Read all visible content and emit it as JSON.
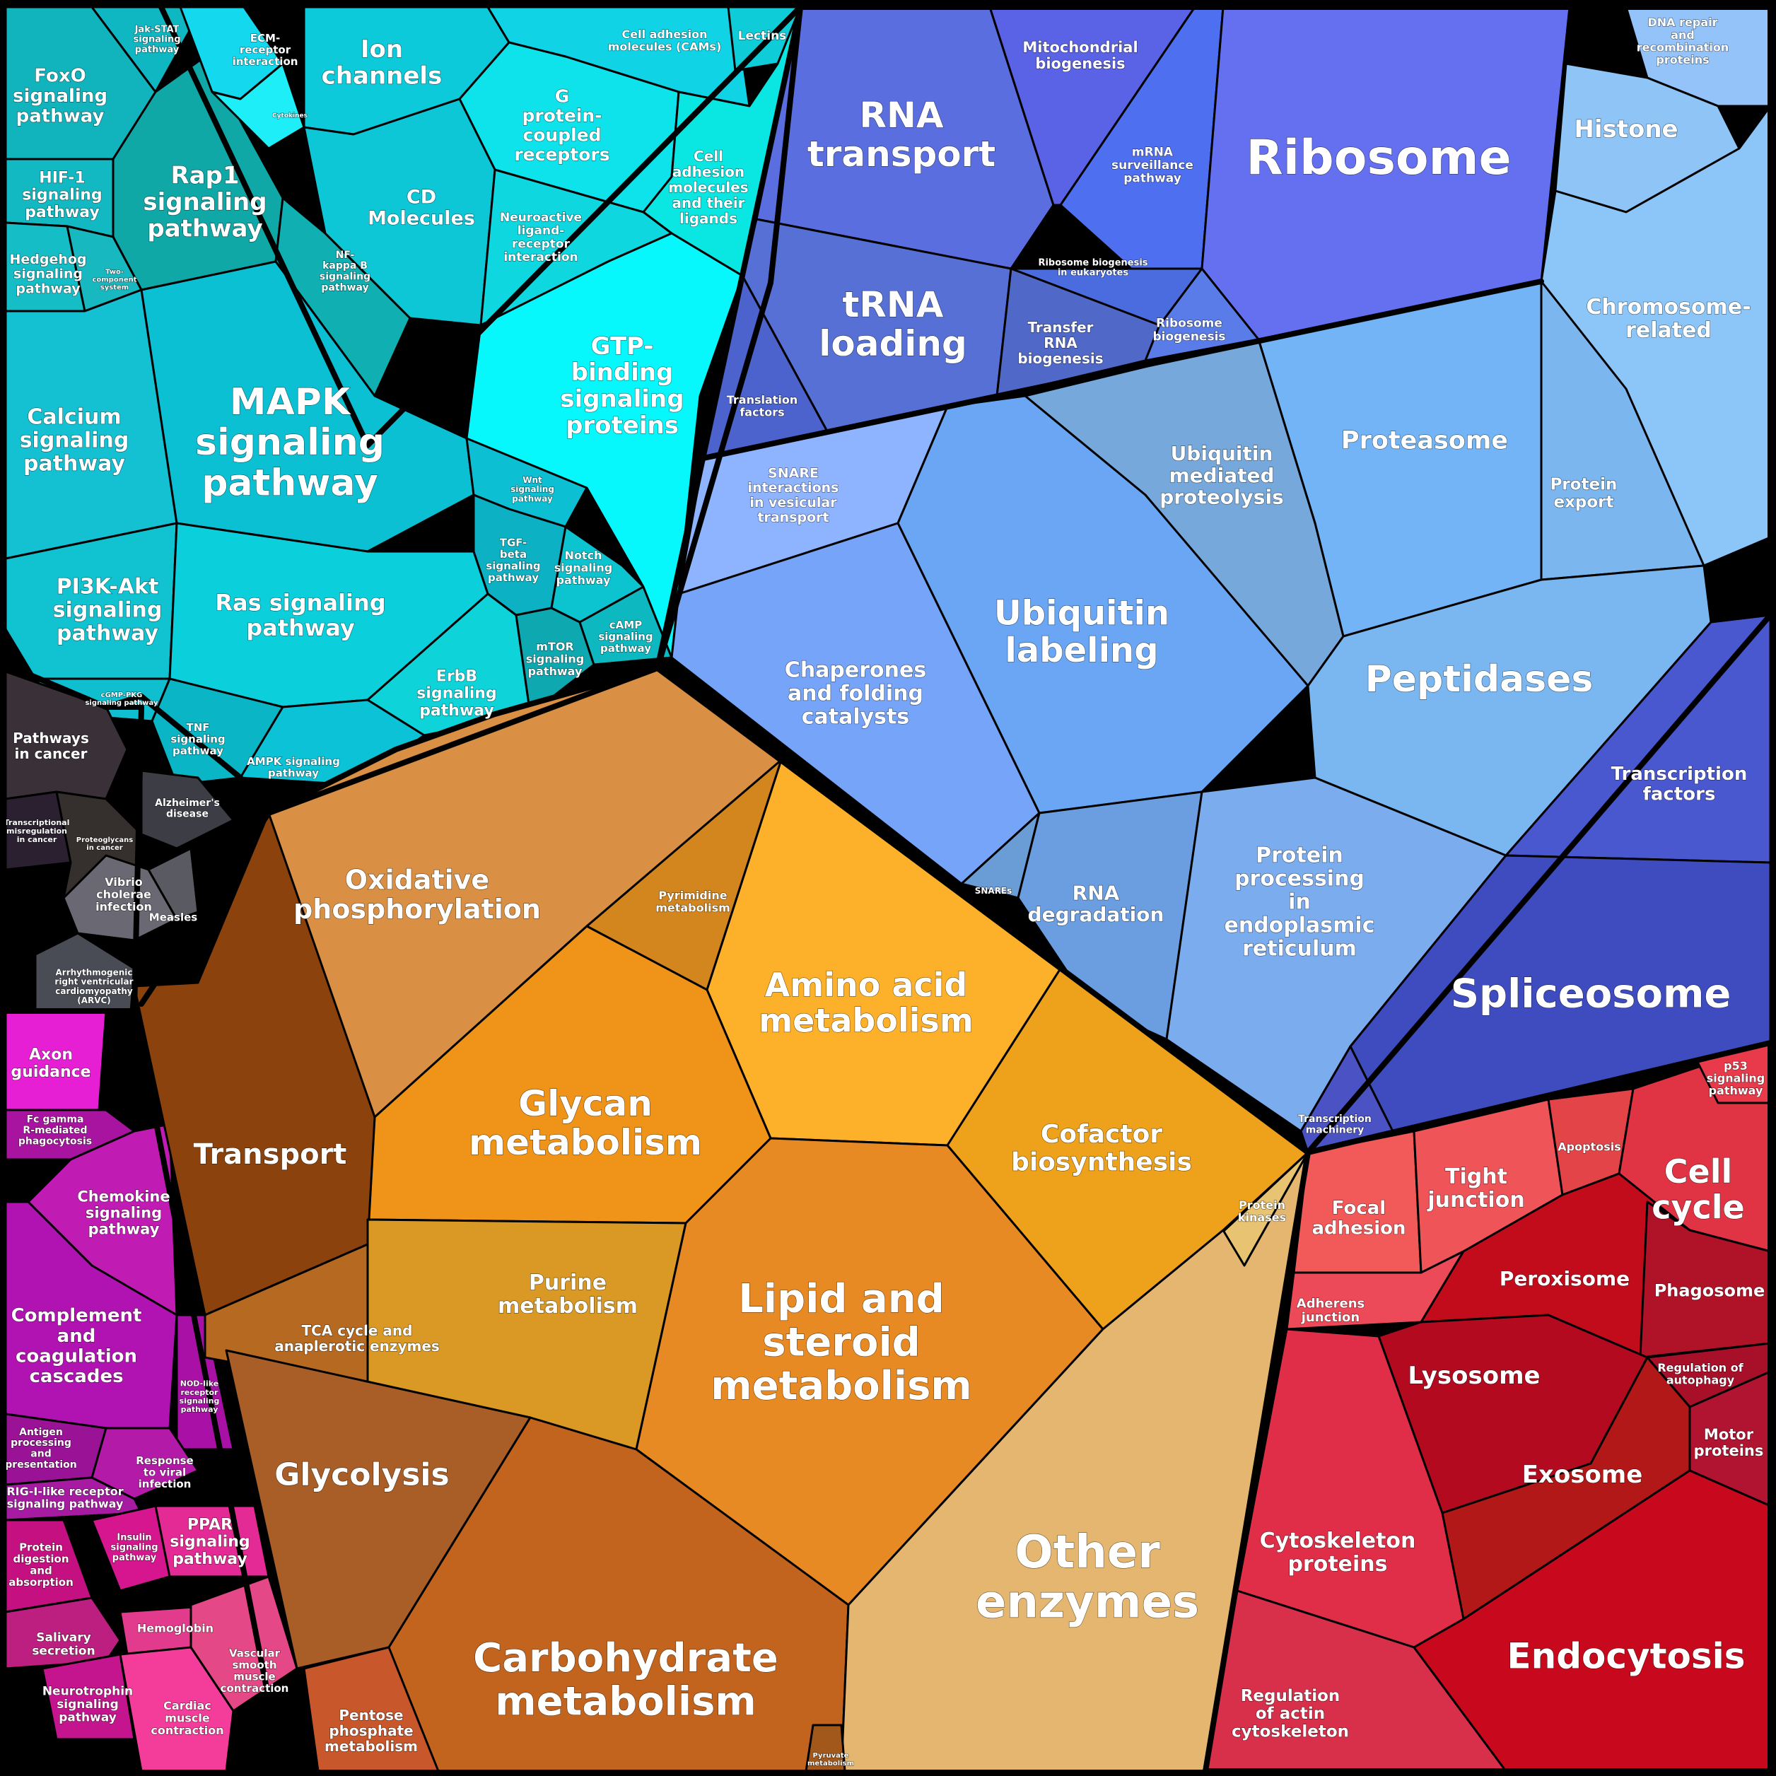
{
  "colors": {
    "signaling": "#0bb9c9",
    "membrane": "#0fe0ef",
    "disease": "#3a3a3a",
    "immune": "#c01cb4",
    "genetic": "#5b6bea",
    "folding": "#6aa6f2",
    "metabolism": "#e88a1e",
    "cellular": "#d41830"
  },
  "cells": [
    {
      "id": "foxo",
      "lines": [
        "FoxO",
        "signaling",
        "pathway"
      ],
      "color": "#11b3bd"
    },
    {
      "id": "jakstat",
      "lines": [
        "Jak-STAT",
        "signaling",
        "pathway"
      ],
      "color": "#0fb7c2"
    },
    {
      "id": "hif1",
      "lines": [
        "HIF-1",
        "signaling",
        "pathway"
      ],
      "color": "#12b9c2"
    },
    {
      "id": "rap1",
      "lines": [
        "Rap1",
        "signaling",
        "pathway"
      ],
      "color": "#0fa8a6"
    },
    {
      "id": "hedgehog",
      "lines": [
        "Hedgehog",
        "signaling",
        "pathway"
      ],
      "color": "#15bdc6"
    },
    {
      "id": "twocomp",
      "lines": [
        "Two-",
        "component",
        "system"
      ],
      "color": "#17b8c0"
    },
    {
      "id": "nfkb",
      "lines": [
        "NF-",
        "kappa B",
        "signaling",
        "pathway"
      ],
      "color": "#10b0b2"
    },
    {
      "id": "calcium",
      "lines": [
        "Calcium",
        "signaling",
        "pathway"
      ],
      "color": "#14c1d2"
    },
    {
      "id": "mapk",
      "lines": [
        "MAPK",
        "signaling",
        "pathway"
      ],
      "color": "#0cc0d4"
    },
    {
      "id": "pi3k",
      "lines": [
        "PI3K-Akt",
        "signaling",
        "pathway"
      ],
      "color": "#11c3d0"
    },
    {
      "id": "ras",
      "lines": [
        "Ras signaling",
        "pathway"
      ],
      "color": "#0ccfdc"
    },
    {
      "id": "wnt",
      "lines": [
        "Wnt",
        "signaling",
        "pathway"
      ],
      "color": "#0cbfd2"
    },
    {
      "id": "tgfb",
      "lines": [
        "TGF-",
        "beta",
        "signaling",
        "pathway"
      ],
      "color": "#0cb1c4"
    },
    {
      "id": "notch",
      "lines": [
        "Notch",
        "signaling",
        "pathway"
      ],
      "color": "#0cc4cf"
    },
    {
      "id": "erbb",
      "lines": [
        "ErbB",
        "signaling",
        "pathway"
      ],
      "color": "#0ed4da"
    },
    {
      "id": "mtor",
      "lines": [
        "mTOR",
        "signaling",
        "pathway"
      ],
      "color": "#0ea8b0"
    },
    {
      "id": "camp",
      "lines": [
        "cAMP",
        "signaling",
        "pathway"
      ],
      "color": "#0eb8c1"
    },
    {
      "id": "cgmp",
      "lines": [
        "cGMP-PKG",
        "signaling pathway"
      ],
      "color": "#0fbfcf"
    },
    {
      "id": "tnf",
      "lines": [
        "TNF",
        "signaling",
        "pathway"
      ],
      "color": "#0ab6c6"
    },
    {
      "id": "ampk",
      "lines": [
        "AMPK signaling",
        "pathway"
      ],
      "color": "#0bc2d6"
    },
    {
      "id": "ecm",
      "lines": [
        "ECM-",
        "receptor",
        "interaction"
      ],
      "color": "#13d8ee"
    },
    {
      "id": "cytokines",
      "lines": [
        "Cytokines"
      ],
      "color": "#1deef8"
    },
    {
      "id": "ionch",
      "lines": [
        "Ion",
        "channels"
      ],
      "color": "#0ccad9"
    },
    {
      "id": "cams",
      "lines": [
        "Cell adhesion",
        "molecules (CAMs)"
      ],
      "color": "#10d3e6"
    },
    {
      "id": "lectins",
      "lines": [
        "Lectins"
      ],
      "color": "#0ecdd9"
    },
    {
      "id": "gpcr",
      "lines": [
        "G",
        "protein-",
        "coupled",
        "receptors"
      ],
      "color": "#0ee3ec"
    },
    {
      "id": "cdmol",
      "lines": [
        "CD",
        "Molecules"
      ],
      "color": "#0dc6d6"
    },
    {
      "id": "cellmol",
      "lines": [
        "Cell",
        "adhesion",
        "molecules",
        "and their",
        "ligands"
      ],
      "color": "#0ae7e3"
    },
    {
      "id": "neuro",
      "lines": [
        "Neuroactive",
        "ligand-",
        "receptor",
        "interaction"
      ],
      "color": "#0ed7df"
    },
    {
      "id": "gtp",
      "lines": [
        "GTP-",
        "binding",
        "signaling",
        "proteins"
      ],
      "color": "#06f8fd"
    },
    {
      "id": "pathcancer",
      "lines": [
        "Pathways",
        "in cancer"
      ],
      "color": "#3a3037"
    },
    {
      "id": "alzheimer",
      "lines": [
        "Alzheimer's",
        "disease"
      ],
      "color": "#3d3d45"
    },
    {
      "id": "transmis",
      "lines": [
        "Transcriptional",
        "misregulation",
        "in cancer"
      ],
      "color": "#2a2030"
    },
    {
      "id": "proteo",
      "lines": [
        "Proteoglycans",
        "in cancer"
      ],
      "color": "#35302e"
    },
    {
      "id": "vibrio",
      "lines": [
        "Vibrio",
        "cholerae",
        "infection"
      ],
      "color": "#6a6872"
    },
    {
      "id": "measles",
      "lines": [
        "Measles"
      ],
      "color": "#5a5a62"
    },
    {
      "id": "arrhythmo",
      "lines": [
        "Arrhythmogenic",
        "right ventricular",
        "cardiomyopathy",
        "(ARVC)"
      ],
      "color": "#4a4c55"
    },
    {
      "id": "axon",
      "lines": [
        "Axon",
        "guidance"
      ],
      "color": "#e61ed4"
    },
    {
      "id": "fcgamma",
      "lines": [
        "Fc gamma",
        "R-mediated",
        "phagocytosis"
      ],
      "color": "#a814a0"
    },
    {
      "id": "chemokine",
      "lines": [
        "Chemokine",
        "signaling",
        "pathway"
      ],
      "color": "#c01cb4"
    },
    {
      "id": "complement",
      "lines": [
        "Complement",
        "and",
        "coagulation",
        "cascades"
      ],
      "color": "#b013b2"
    },
    {
      "id": "nod",
      "lines": [
        "NOD-like",
        "receptor",
        "signaling",
        "pathway"
      ],
      "color": "#a810a6"
    },
    {
      "id": "antigen",
      "lines": [
        "Antigen",
        "processing",
        "and",
        "presentation"
      ],
      "color": "#9a1296"
    },
    {
      "id": "response",
      "lines": [
        "Response",
        "to viral",
        "infection"
      ],
      "color": "#b41aa8"
    },
    {
      "id": "rigi",
      "lines": [
        "RIG-I-like receptor",
        "signaling pathway"
      ],
      "color": "#a71aa2"
    },
    {
      "id": "protdig",
      "lines": [
        "Protein",
        "digestion",
        "and",
        "absorption"
      ],
      "color": "#c41080"
    },
    {
      "id": "insulin",
      "lines": [
        "Insulin",
        "signaling",
        "pathway"
      ],
      "color": "#d6168e"
    },
    {
      "id": "ppar",
      "lines": [
        "PPAR",
        "signaling",
        "pathway"
      ],
      "color": "#e42a94"
    },
    {
      "id": "salivary",
      "lines": [
        "Salivary",
        "secretion"
      ],
      "color": "#bc1f80"
    },
    {
      "id": "hemoglobin",
      "lines": [
        "Hemoglobin"
      ],
      "color": "#e23a8c"
    },
    {
      "id": "neurotroph",
      "lines": [
        "Neurotrophin",
        "signaling",
        "pathway"
      ],
      "color": "#c4148e"
    },
    {
      "id": "vascular",
      "lines": [
        "Vascular",
        "smooth",
        "muscle",
        "contraction"
      ],
      "color": "#e44886"
    },
    {
      "id": "cardiac",
      "lines": [
        "Cardiac",
        "muscle",
        "contraction"
      ],
      "color": "#f43c9a"
    },
    {
      "id": "rnatrans",
      "lines": [
        "RNA",
        "transport"
      ],
      "color": "#5a6ee0"
    },
    {
      "id": "mitobio",
      "lines": [
        "Mitochondrial",
        "biogenesis"
      ],
      "color": "#5a62e6"
    },
    {
      "id": "mrna",
      "lines": [
        "mRNA",
        "surveillance",
        "pathway"
      ],
      "color": "#4e6ff0"
    },
    {
      "id": "ribosome",
      "lines": [
        "Ribosome"
      ],
      "color": "#6470f0"
    },
    {
      "id": "trna",
      "lines": [
        "tRNA",
        "loading"
      ],
      "color": "#5670d6"
    },
    {
      "id": "ribobioeuk",
      "lines": [
        "Ribosome biogenesis",
        "in eukaryotes"
      ],
      "color": "#4a6cde"
    },
    {
      "id": "transfer",
      "lines": [
        "Transfer",
        "RNA",
        "biogenesis"
      ],
      "color": "#5068c8"
    },
    {
      "id": "ribobio",
      "lines": [
        "Ribosome",
        "biogenesis"
      ],
      "color": "#5a7ce8"
    },
    {
      "id": "translation",
      "lines": [
        "Translation",
        "factors"
      ],
      "color": "#4c62cc"
    },
    {
      "id": "dnarepair",
      "lines": [
        "DNA repair",
        "and",
        "recombination",
        "proteins"
      ],
      "color": "#93c3f8"
    },
    {
      "id": "histone",
      "lines": [
        "Histone"
      ],
      "color": "#8ec4f6"
    },
    {
      "id": "chromosome",
      "lines": [
        "Chromosome-",
        "related"
      ],
      "color": "#8cc6f8"
    },
    {
      "id": "proteasome",
      "lines": [
        "Proteasome"
      ],
      "color": "#72b4f6"
    },
    {
      "id": "ubiqmed",
      "lines": [
        "Ubiquitin",
        "mediated",
        "proteolysis"
      ],
      "color": "#76a8dc"
    },
    {
      "id": "protexport",
      "lines": [
        "Protein",
        "export"
      ],
      "color": "#7cb6ee"
    },
    {
      "id": "snare",
      "lines": [
        "SNARE",
        "interactions",
        "in vesicular",
        "transport"
      ],
      "color": "#8fb4ff"
    },
    {
      "id": "ubiqlab",
      "lines": [
        "Ubiquitin",
        "labeling"
      ],
      "color": "#6aa6f4"
    },
    {
      "id": "chaperones",
      "lines": [
        "Chaperones",
        "and folding",
        "catalysts"
      ],
      "color": "#76a4f8"
    },
    {
      "id": "peptidases",
      "lines": [
        "Peptidases"
      ],
      "color": "#7ab6f0"
    },
    {
      "id": "transcfac",
      "lines": [
        "Transcription",
        "factors"
      ],
      "color": "#4a58d0"
    },
    {
      "id": "snares",
      "lines": [
        "SNAREs"
      ],
      "color": "#6a9cd6"
    },
    {
      "id": "rnadeg",
      "lines": [
        "RNA",
        "degradation"
      ],
      "color": "#6a9ee0"
    },
    {
      "id": "protproc",
      "lines": [
        "Protein",
        "processing",
        "in",
        "endoplasmic",
        "reticulum"
      ],
      "color": "#7aacee"
    },
    {
      "id": "spliceosome",
      "lines": [
        "Spliceosome"
      ],
      "color": "#3e4cc0"
    },
    {
      "id": "transmach",
      "lines": [
        "Transcription",
        "machinery"
      ],
      "color": "#4a52c4"
    },
    {
      "id": "oxphos",
      "lines": [
        "Oxidative",
        "phosphorylation"
      ],
      "color": "#d98f44"
    },
    {
      "id": "pyrimidine",
      "lines": [
        "Pyrimidine",
        "metabolism"
      ],
      "color": "#d4861e"
    },
    {
      "id": "aminoacid",
      "lines": [
        "Amino acid",
        "metabolism"
      ],
      "color": "#fdb02a"
    },
    {
      "id": "glycan",
      "lines": [
        "Glycan",
        "metabolism"
      ],
      "color": "#ef9418"
    },
    {
      "id": "cofactor",
      "lines": [
        "Cofactor",
        "biosynthesis"
      ],
      "color": "#eea21c"
    },
    {
      "id": "transport",
      "lines": [
        "Transport"
      ],
      "color": "#8b420c"
    },
    {
      "id": "purine",
      "lines": [
        "Purine",
        "metabolism"
      ],
      "color": "#d99924"
    },
    {
      "id": "lipid",
      "lines": [
        "Lipid and",
        "steroid",
        "metabolism"
      ],
      "color": "#e88a24"
    },
    {
      "id": "protkinases",
      "lines": [
        "Protein",
        "kinases"
      ],
      "color": "#e8c472"
    },
    {
      "id": "tca",
      "lines": [
        "TCA cycle and",
        "anaplerotic enzymes"
      ],
      "color": "#b66920"
    },
    {
      "id": "glycolysis",
      "lines": [
        "Glycolysis"
      ],
      "color": "#a85e26"
    },
    {
      "id": "carbo",
      "lines": [
        "Carbohydrate",
        "metabolism"
      ],
      "color": "#c2641e"
    },
    {
      "id": "otherenz",
      "lines": [
        "Other",
        "enzymes"
      ],
      "color": "#e4b670"
    },
    {
      "id": "pentose",
      "lines": [
        "Pentose",
        "phosphate",
        "metabolism"
      ],
      "color": "#c8582c"
    },
    {
      "id": "pyruvate",
      "lines": [
        "Pyruvate",
        "metabolism"
      ],
      "color": "#a2581a"
    },
    {
      "id": "focal",
      "lines": [
        "Focal",
        "adhesion"
      ],
      "color": "#f25a5a"
    },
    {
      "id": "tight",
      "lines": [
        "Tight",
        "junction"
      ],
      "color": "#ee5458"
    },
    {
      "id": "apoptosis",
      "lines": [
        "Apoptosis"
      ],
      "color": "#e24448"
    },
    {
      "id": "cellcycle",
      "lines": [
        "Cell",
        "cycle"
      ],
      "color": "#e03444"
    },
    {
      "id": "p53",
      "lines": [
        "p53",
        "signaling",
        "pathway"
      ],
      "color": "#e83a4a"
    },
    {
      "id": "adherens",
      "lines": [
        "Adherens",
        "junction"
      ],
      "color": "#ec4a58"
    },
    {
      "id": "peroxisome",
      "lines": [
        "Peroxisome"
      ],
      "color": "#c20c1c"
    },
    {
      "id": "phagosome",
      "lines": [
        "Phagosome"
      ],
      "color": "#b01228"
    },
    {
      "id": "lysosome",
      "lines": [
        "Lysosome"
      ],
      "color": "#b40a20"
    },
    {
      "id": "regauto",
      "lines": [
        "Regulation of",
        "autophagy"
      ],
      "color": "#a8102a"
    },
    {
      "id": "exosome",
      "lines": [
        "Exosome"
      ],
      "color": "#b21818"
    },
    {
      "id": "motor",
      "lines": [
        "Motor",
        "proteins"
      ],
      "color": "#b01430"
    },
    {
      "id": "cytoskel",
      "lines": [
        "Cytoskeleton",
        "proteins"
      ],
      "color": "#e02e48"
    },
    {
      "id": "regactin",
      "lines": [
        "Regulation",
        "of actin",
        "cytoskeleton"
      ],
      "color": "#d8304a"
    },
    {
      "id": "endocytosis",
      "lines": [
        "Endocytosis"
      ],
      "color": "#c8081c"
    }
  ]
}
